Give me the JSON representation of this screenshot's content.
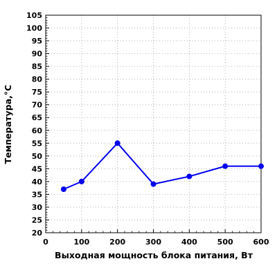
{
  "chart_data": {
    "type": "line",
    "title": "",
    "xlabel": "Выходная мощность блока питания, Вт",
    "ylabel": "Температура,°С",
    "xlim": [
      0,
      600
    ],
    "ylim": [
      20,
      105
    ],
    "x_ticks": [
      0,
      100,
      200,
      300,
      400,
      500,
      600
    ],
    "y_ticks": [
      20,
      25,
      30,
      35,
      40,
      45,
      50,
      55,
      60,
      65,
      70,
      75,
      80,
      85,
      90,
      95,
      100,
      105
    ],
    "grid": true,
    "grid_style": "dotted",
    "series": [
      {
        "x": [
          50,
          100,
          200,
          300,
          400,
          500,
          600
        ],
        "y": [
          37,
          40,
          55,
          39,
          42,
          46,
          46
        ],
        "color": "#0000ee",
        "marker": "circle"
      }
    ]
  }
}
